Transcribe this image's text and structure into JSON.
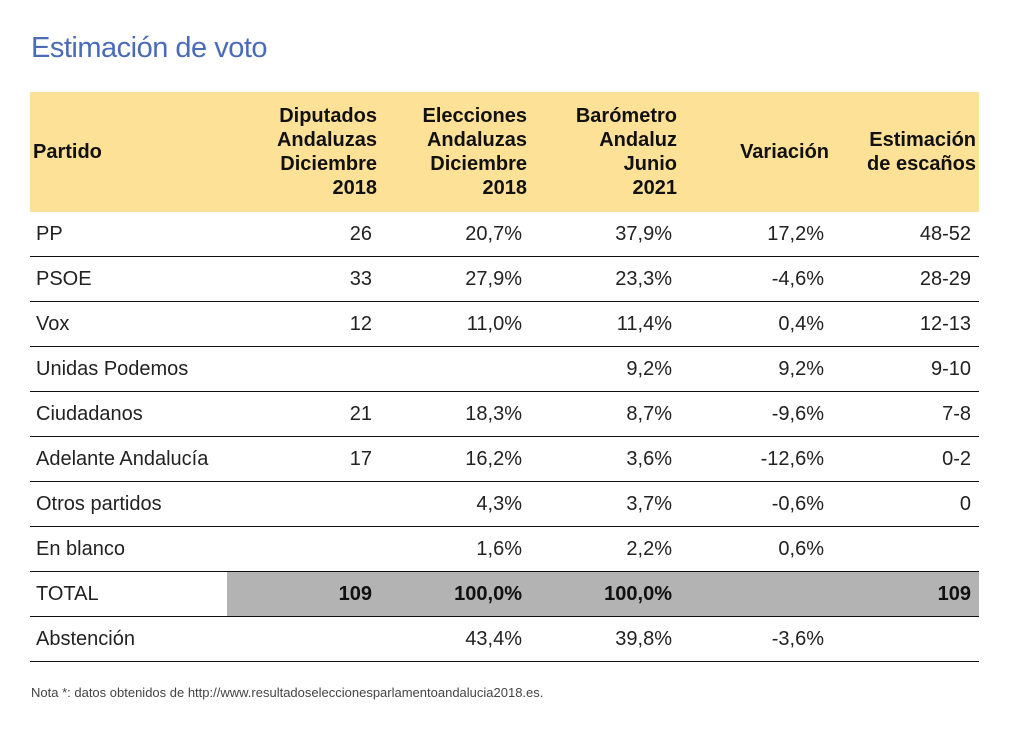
{
  "title": "Estimación de voto",
  "headers": [
    "Partido",
    "Diputados Andaluzas Diciembre 2018",
    "Elecciones Andaluzas Diciembre 2018",
    "Barómetro Andaluz Junio 2021",
    "Variación",
    "Estimación de escaños"
  ],
  "header_lines": [
    [
      "Partido"
    ],
    [
      "Diputados",
      "Andaluzas",
      "Diciembre",
      "2018"
    ],
    [
      "Elecciones",
      "Andaluzas",
      "Diciembre",
      "2018"
    ],
    [
      "Barómetro",
      "Andaluz",
      "Junio",
      "2021"
    ],
    [
      "Variación"
    ],
    [
      "Estimación",
      "de escaños"
    ]
  ],
  "rows": [
    [
      "PP",
      "26",
      "20,7%",
      "37,9%",
      "17,2%",
      "48-52"
    ],
    [
      "PSOE",
      "33",
      "27,9%",
      "23,3%",
      "-4,6%",
      "28-29"
    ],
    [
      "Vox",
      "12",
      "11,0%",
      "11,4%",
      "0,4%",
      "12-13"
    ],
    [
      "Unidas Podemos",
      "",
      "",
      "9,2%",
      "9,2%",
      "9-10"
    ],
    [
      "Ciudadanos",
      "21",
      "18,3%",
      "8,7%",
      "-9,6%",
      "7-8"
    ],
    [
      "Adelante Andalucía",
      "17",
      "16,2%",
      "3,6%",
      "-12,6%",
      "0-2"
    ],
    [
      "Otros partidos",
      "",
      "4,3%",
      "3,7%",
      "-0,6%",
      "0"
    ],
    [
      "En blanco",
      "",
      "1,6%",
      "2,2%",
      "0,6%",
      ""
    ],
    [
      "TOTAL",
      "109",
      "100,0%",
      "100,0%",
      "",
      "109"
    ],
    [
      "Abstención",
      "",
      "43,4%",
      "39,8%",
      "-3,6%",
      ""
    ]
  ],
  "note": "Nota *: datos obtenidos de http://www.resultadoseleccionesparlamentoandalucia2018.es.",
  "colors": {
    "title": "#4a6cb8",
    "header_bg": "#fde197",
    "total_bg": "#b3b3b3"
  }
}
